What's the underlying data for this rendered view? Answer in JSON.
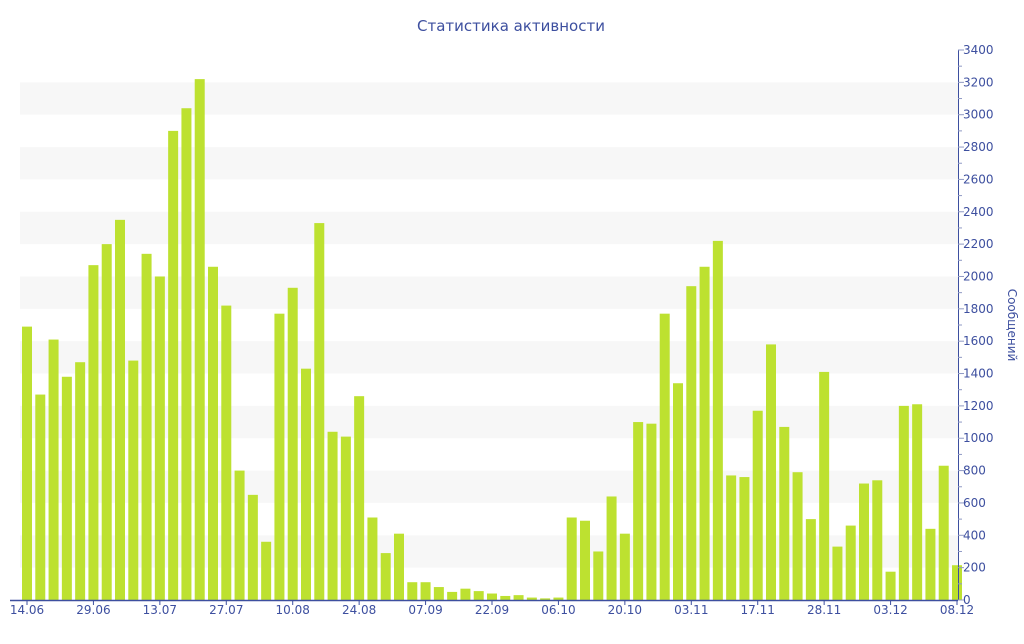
{
  "chart_data": {
    "type": "bar",
    "title": "Статистика активности",
    "xlabel": "",
    "ylabel": "Сообщений",
    "ylim": [
      0,
      3400
    ],
    "y_ticks": [
      0,
      200,
      400,
      600,
      800,
      1000,
      1200,
      1400,
      1600,
      1800,
      2000,
      2200,
      2400,
      2600,
      2800,
      3000,
      3200,
      3400
    ],
    "y_axis_side": "right",
    "grid": "alternating horizontal bands",
    "x_tick_labels": [
      {
        "bar": 0,
        "label": "14.06"
      },
      {
        "bar": 5,
        "label": "29.06"
      },
      {
        "bar": 10,
        "label": "13.07"
      },
      {
        "bar": 15,
        "label": "27.07"
      },
      {
        "bar": 20,
        "label": "10.08"
      },
      {
        "bar": 25,
        "label": "24.08"
      },
      {
        "bar": 30,
        "label": "07.09"
      },
      {
        "bar": 35,
        "label": "22.09"
      },
      {
        "bar": 40,
        "label": "06.10"
      },
      {
        "bar": 45,
        "label": "20.10"
      },
      {
        "bar": 50,
        "label": "03.11"
      },
      {
        "bar": 55,
        "label": "17.11"
      },
      {
        "bar": 60,
        "label": "28.11"
      },
      {
        "bar": 65,
        "label": "03.12"
      },
      {
        "bar": 70,
        "label": "08.12"
      }
    ],
    "values": [
      1690,
      1270,
      1610,
      1380,
      1470,
      2070,
      2200,
      2350,
      1480,
      2140,
      2000,
      2900,
      3040,
      3220,
      2060,
      1820,
      800,
      650,
      360,
      1770,
      1930,
      1430,
      2330,
      1040,
      1010,
      1260,
      510,
      290,
      410,
      110,
      110,
      80,
      50,
      70,
      55,
      40,
      25,
      30,
      15,
      10,
      15,
      510,
      490,
      300,
      640,
      410,
      1100,
      1090,
      1770,
      1340,
      1940,
      2060,
      2220,
      770,
      760,
      1170,
      1580,
      1070,
      790,
      500,
      1410,
      330,
      460,
      720,
      740,
      175,
      1200,
      1210,
      440,
      830,
      215
    ],
    "colors": {
      "bar": "#bde130",
      "axis": "#3d4f9f",
      "band": "#f7f7f7"
    }
  }
}
